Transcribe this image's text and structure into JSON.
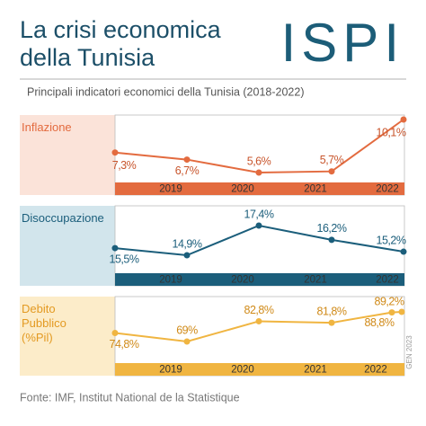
{
  "title": "La crisi economica della Tunisia",
  "logo": "ISPI",
  "subtitle": "Principali indicatori economici della Tunisia (2018-2022)",
  "source": "Fonte: IMF, Institut National de la Statistique",
  "chart_data": [
    {
      "type": "line",
      "title": "Inflazione",
      "color": "#e36b3f",
      "categories": [
        null,
        "2019",
        "2020",
        "2021",
        "2022"
      ],
      "values": [
        7.3,
        6.7,
        5.6,
        5.7,
        10.1
      ],
      "value_labels": [
        "7,3%",
        "6,7%",
        "5,6%",
        "5,7%",
        "10,1%"
      ]
    },
    {
      "type": "line",
      "title": "Disoccupazione",
      "color": "#1b5e7b",
      "categories": [
        null,
        "2019",
        "2020",
        "2021",
        "2022"
      ],
      "values": [
        15.5,
        14.9,
        17.4,
        16.2,
        15.2
      ],
      "value_labels": [
        "15,5%",
        "14,9%",
        "17,4%",
        "16,2%",
        "15,2%"
      ]
    },
    {
      "type": "line",
      "title": "Debito Pubblico (%Pil)",
      "color": "#f0b541",
      "categories": [
        null,
        "2019",
        "2020",
        "2021",
        "2022",
        "GEN 2023"
      ],
      "values": [
        74.8,
        69,
        82.8,
        81.8,
        88.8,
        89.2
      ],
      "value_labels": [
        "74,8%",
        "69%",
        "82,8%",
        "81,8%",
        "88,8%",
        "89,2%"
      ]
    }
  ]
}
